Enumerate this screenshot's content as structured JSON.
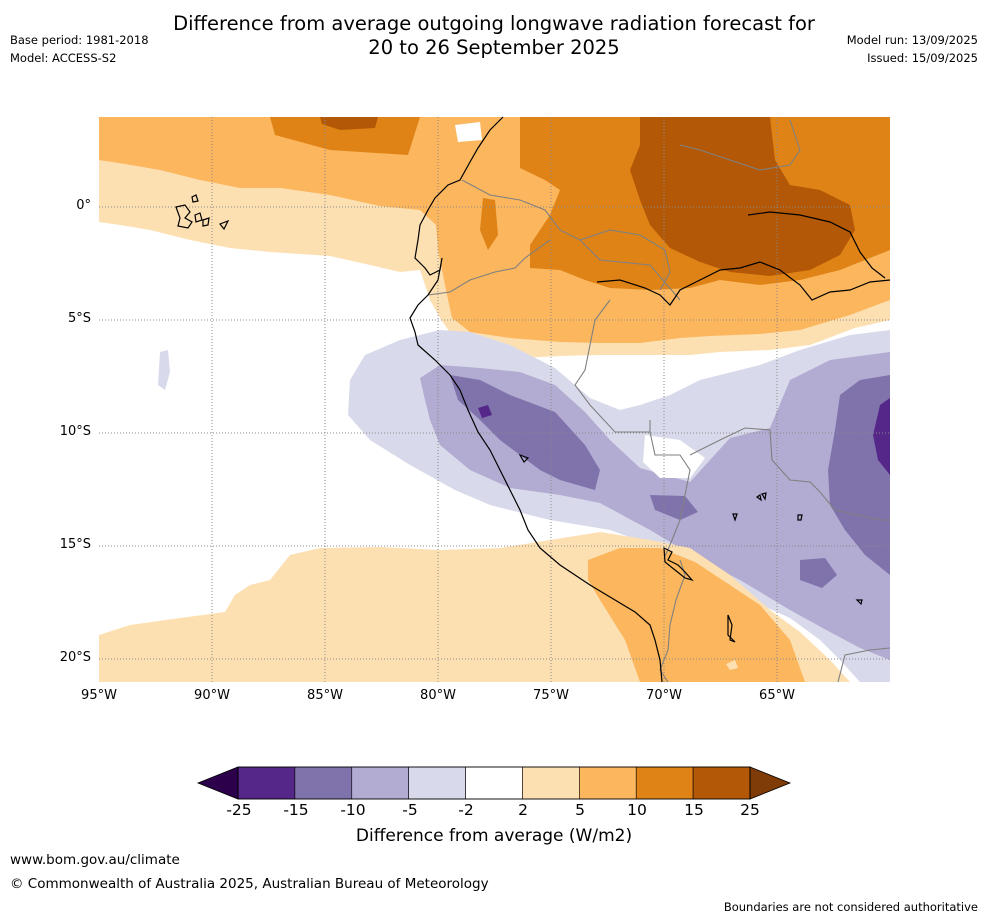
{
  "header": {
    "title_line1": "Difference from average outgoing longwave radiation forecast for",
    "title_line2": "20 to 26 September 2025",
    "base_period": "Base period: 1981-2018",
    "model": "Model: ACCESS-S2",
    "model_run": "Model run: 13/09/2025",
    "issued": "Issued: 15/09/2025"
  },
  "map": {
    "lat_labels": [
      "0°",
      "5°S",
      "10°S",
      "15°S",
      "20°S"
    ],
    "lon_labels": [
      "95°W",
      "90°W",
      "85°W",
      "80°W",
      "75°W",
      "70°W",
      "65°W"
    ],
    "colors": {
      "water": "#ffffff",
      "pos_2_5": "#fde0b2",
      "pos_5_10": "#fbb65e",
      "pos_10_15": "#e08316",
      "pos_15_25": "#b35806",
      "neg_2_5": "#d8daeb",
      "neg_5_10": "#b2abd2",
      "neg_10_15": "#8073ac",
      "neg_15_25": "#542788",
      "coast": "#000000",
      "border": "#808080"
    }
  },
  "colorbar": {
    "tick_labels": [
      "-25",
      "-15",
      "-10",
      "-5",
      "-2",
      "2",
      "5",
      "10",
      "15",
      "25"
    ],
    "segment_colors": [
      "#542788",
      "#8073ac",
      "#b2abd2",
      "#d8daeb",
      "#ffffff",
      "#fde0b2",
      "#fbb65e",
      "#e08316",
      "#b35806"
    ],
    "low_extend_color": "#2d004b",
    "high_extend_color": "#7f3b08",
    "label": "Difference from average (W/m2)"
  },
  "footer": {
    "website": "www.bom.gov.au/climate",
    "copyright": "© Commonwealth of Australia 2025, Australian Bureau of Meteorology",
    "disclaimer": "Boundaries are not considered authoritative"
  }
}
